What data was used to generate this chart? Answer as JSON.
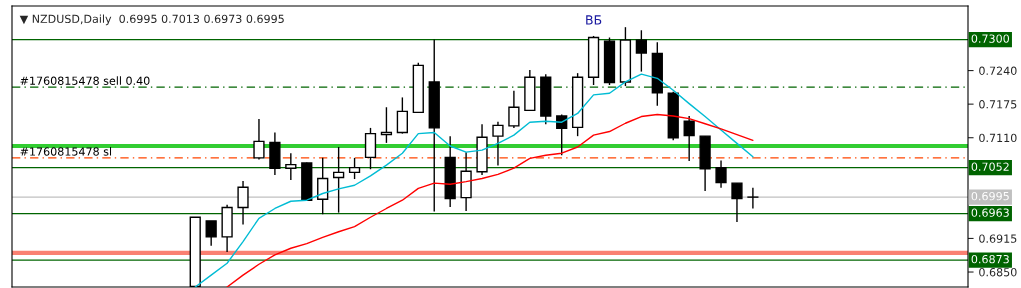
{
  "chart_data": {
    "type": "candlestick",
    "title": "▼ NZDUSD,Daily  0.6995 0.7013 0.6973 0.6995",
    "categories": [
      null,
      null,
      null,
      null,
      null,
      null,
      null,
      null,
      null,
      null,
      null,
      null,
      null,
      null,
      null,
      null,
      null,
      null,
      null,
      null,
      null,
      null,
      null,
      null,
      null,
      null,
      null,
      null,
      null,
      null,
      null,
      null,
      null,
      null,
      null,
      null,
      null,
      null,
      null,
      null,
      null,
      null,
      null,
      null,
      null,
      null,
      null,
      null,
      null,
      null,
      null,
      null,
      null,
      null,
      null,
      null,
      null,
      null,
      null,
      null
    ],
    "ohlc": [
      null,
      null,
      null,
      null,
      null,
      null,
      null,
      null,
      null,
      null,
      null,
      [
        0.6822,
        0.6956,
        0.6822,
        0.6956
      ],
      [
        0.6949,
        0.6949,
        0.6901,
        0.6918
      ],
      [
        0.6918,
        0.698,
        0.6889,
        0.6975
      ],
      [
        0.6975,
        0.7026,
        0.6942,
        0.7014
      ],
      [
        0.7071,
        0.7146,
        0.7068,
        0.7103
      ],
      [
        0.7101,
        0.712,
        0.7038,
        0.7051
      ],
      [
        0.7051,
        0.708,
        0.7028,
        0.7058
      ],
      [
        0.7061,
        0.7062,
        0.6989,
        0.6989
      ],
      [
        0.6991,
        0.7071,
        0.6962,
        0.7031
      ],
      [
        0.7033,
        0.7092,
        0.6965,
        0.7043
      ],
      [
        0.7043,
        0.7071,
        0.703,
        0.7052
      ],
      [
        0.7072,
        0.7129,
        0.7049,
        0.7118
      ],
      [
        0.7116,
        0.7169,
        0.71,
        0.712
      ],
      [
        0.712,
        0.7188,
        0.7118,
        0.7161
      ],
      [
        0.7159,
        0.7255,
        0.7159,
        0.725
      ],
      [
        0.7218,
        0.73,
        0.6967,
        0.7129
      ],
      [
        0.7072,
        0.7113,
        0.6976,
        0.6992
      ],
      [
        0.6994,
        0.7082,
        0.6968,
        0.7045
      ],
      [
        0.7044,
        0.7136,
        0.7038,
        0.7111
      ],
      [
        0.7113,
        0.7141,
        0.7056,
        0.7134
      ],
      [
        0.7133,
        0.7201,
        0.7129,
        0.7169
      ],
      [
        0.7163,
        0.7241,
        0.7163,
        0.7227
      ],
      [
        0.7227,
        0.7233,
        0.7136,
        0.7152
      ],
      [
        0.7152,
        0.7155,
        0.7076,
        0.7128
      ],
      [
        0.713,
        0.7235,
        0.7113,
        0.7227
      ],
      [
        0.7227,
        0.7307,
        0.7212,
        0.7304
      ],
      [
        0.7297,
        0.7304,
        0.7212,
        0.7217
      ],
      [
        0.7218,
        0.7324,
        0.721,
        0.7299
      ],
      [
        0.7299,
        0.7318,
        0.7238,
        0.7274
      ],
      [
        0.7273,
        0.7295,
        0.7172,
        0.7197
      ],
      [
        0.7196,
        0.7199,
        0.7105,
        0.711
      ],
      [
        0.7142,
        0.7152,
        0.7065,
        0.7114
      ],
      [
        0.7113,
        0.7113,
        0.7007,
        0.705
      ],
      [
        0.7052,
        0.7066,
        0.7013,
        0.7023
      ],
      [
        0.7022,
        0.7022,
        0.6947,
        0.6992
      ],
      [
        0.6995,
        0.7013,
        0.6973,
        0.6995
      ],
      null,
      null,
      null,
      null,
      null,
      null,
      null,
      null,
      null,
      null,
      null,
      null,
      null
    ],
    "series": [
      {
        "type": "line",
        "color": "#00bcd4",
        "values": [
          null,
          null,
          null,
          null,
          null,
          null,
          null,
          null,
          null,
          null,
          null,
          0.6821,
          0.6844,
          0.6867,
          0.6909,
          0.6954,
          0.6973,
          0.6987,
          0.6989,
          0.7002,
          0.7011,
          0.7018,
          0.7036,
          0.7057,
          0.708,
          0.7118,
          0.712,
          0.7094,
          0.7082,
          0.7086,
          0.7099,
          0.7115,
          0.714,
          0.7142,
          0.714,
          0.7157,
          0.7193,
          0.7196,
          0.7218,
          0.7233,
          0.7225,
          0.7202,
          0.7176,
          0.7151,
          0.7125,
          0.7099,
          0.7073,
          null,
          null,
          null,
          null,
          null,
          null,
          null,
          null,
          null,
          null,
          null,
          null,
          null
        ]
      },
      {
        "type": "line",
        "color": "#ff0000",
        "values": [
          null,
          null,
          null,
          null,
          null,
          null,
          null,
          null,
          null,
          null,
          null,
          null,
          null,
          0.6821,
          0.6844,
          0.6865,
          0.6883,
          0.6896,
          0.6905,
          0.6917,
          0.6928,
          0.6938,
          0.6956,
          0.6973,
          0.6989,
          0.7012,
          0.7022,
          0.702,
          0.7025,
          0.7031,
          0.7039,
          0.7051,
          0.707,
          0.7076,
          0.708,
          0.7092,
          0.7115,
          0.7122,
          0.7138,
          0.7151,
          0.7155,
          0.7152,
          0.7147,
          0.7137,
          0.7127,
          0.7116,
          0.7105,
          null,
          null,
          null,
          null,
          null,
          null,
          null,
          null,
          null,
          null,
          null,
          null,
          null
        ]
      }
    ],
    "ylim": [
      0.6821,
      0.7365
    ],
    "yticks": [
      {
        "value": 0.724,
        "label": "0.7240"
      },
      {
        "value": 0.7175,
        "label": "0.7175"
      },
      {
        "value": 0.711,
        "label": "0.7110"
      },
      {
        "value": 0.6915,
        "label": "0.6915"
      },
      {
        "value": 0.685,
        "label": "0.6850"
      }
    ],
    "ref_lines": [
      {
        "axis": "y",
        "value": 0.73,
        "label": "0.7300",
        "color": "#006400",
        "line_style": "solid"
      },
      {
        "axis": "y",
        "value": 0.7208,
        "label": "#1760815478 sell 0.40",
        "color": "#006400",
        "line_style": "dashed"
      },
      {
        "axis": "y",
        "value": 0.7094,
        "label": null,
        "color": "#32cd32",
        "line_style": "solid"
      },
      {
        "axis": "y",
        "value": 0.7071,
        "label": "#1760815478 sl",
        "color": "#ff4500",
        "line_style": "dashed"
      },
      {
        "axis": "y",
        "value": 0.7052,
        "label": "0.7052",
        "color": "#006400",
        "line_style": "solid"
      },
      {
        "axis": "y",
        "value": 0.6995,
        "label": "0.6995",
        "color": "#c0c0c0",
        "line_style": "solid"
      },
      {
        "axis": "y",
        "value": 0.6963,
        "label": "0.6963",
        "color": "#006400",
        "line_style": "solid"
      },
      {
        "axis": "y",
        "value": 0.6887,
        "label": null,
        "color": "#fa8072",
        "line_style": "solid"
      },
      {
        "axis": "y",
        "value": 0.6873,
        "label": "0.6873",
        "color": "#006400",
        "line_style": "solid"
      }
    ],
    "annotations": [
      "ВБ"
    ],
    "legend": false,
    "grid": false
  }
}
